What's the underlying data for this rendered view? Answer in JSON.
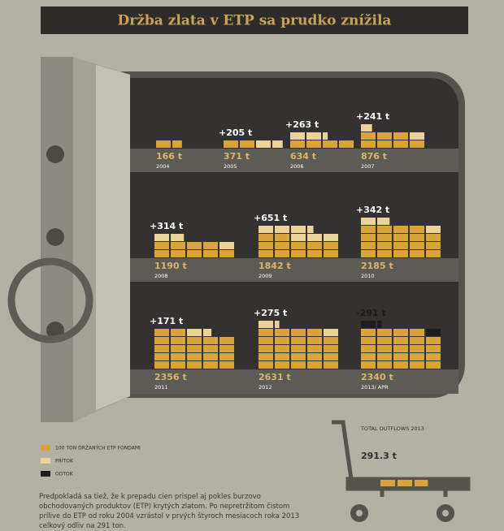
{
  "chart_data": {
    "type": "pictogram",
    "title": "Držba zlata v ETP sa prudko znížila",
    "categories": [
      "2004",
      "2005",
      "2006",
      "2007",
      "2008",
      "2009",
      "2010",
      "2011",
      "2012",
      "2013/ APR"
    ],
    "values": [
      166,
      371,
      634,
      876,
      1190,
      1842,
      2185,
      2356,
      2631,
      2340
    ],
    "value_labels": [
      "166 t",
      "371 t",
      "634 t",
      "876 t",
      "1190 t",
      "1842 t",
      "2185 t",
      "2356 t",
      "2631 t",
      "2340 t"
    ],
    "changes": [
      null,
      205,
      263,
      241,
      314,
      651,
      342,
      171,
      275,
      -291
    ],
    "change_labels": [
      null,
      "+205 t",
      "+263 t",
      "+241 t",
      "+314 t",
      "+651 t",
      "+342 t",
      "+171 t",
      "+275 t",
      "-291 t"
    ],
    "unit": 100,
    "legend": [
      {
        "name": "100 TON DRŽANÝCH ETP FONDAMI",
        "color": "#d9a53a"
      },
      {
        "name": "PRÍTOK",
        "color": "#ecd39a"
      },
      {
        "name": "ODTOK",
        "color": "#1e1d1b"
      }
    ],
    "outflow_title": "TOTAL OUTFLOWS 2013",
    "outflow_value": 291.3,
    "outflow_label": "291.3 t",
    "note": "Predpokladá sa tiež, že k prepadu cien prispel aj pokles burzovo obchodovaných produktov (ETP) krytých zlatom. Po nepretržitom čistom prílive do ETP od roku 2004 vzrástol v prvých štyroch mesiacoch roka 2013 celkový odliv na 291 ton."
  }
}
